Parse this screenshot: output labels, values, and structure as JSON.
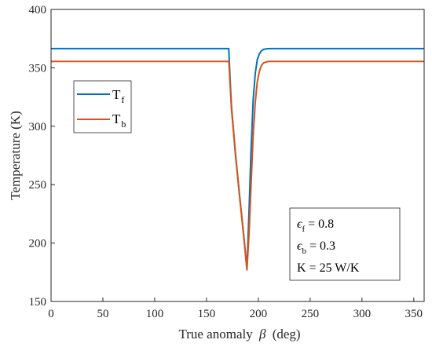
{
  "chart_data": {
    "type": "line",
    "title": "",
    "xlabel": "True anomaly",
    "xlabel_symbol": "β",
    "xlabel_unit": "(deg)",
    "ylabel": "Temperature (K)",
    "xlim": [
      0,
      360
    ],
    "ylim": [
      150,
      400
    ],
    "xticks": [
      0,
      50,
      100,
      150,
      200,
      250,
      300,
      350
    ],
    "yticks": [
      150,
      200,
      250,
      300,
      350,
      400
    ],
    "grid": false,
    "legend_position": "upper-left",
    "series": [
      {
        "name_main": "T",
        "name_sub": "f",
        "color": "#0072BD",
        "x": [
          0,
          171.5,
          172,
          174,
          178,
          182,
          186,
          189,
          191,
          193,
          195,
          197,
          199,
          201,
          203,
          205,
          208,
          212,
          360
        ],
        "y": [
          366.5,
          366.5,
          355,
          318,
          276,
          240,
          206,
          178,
          226,
          280,
          322,
          345,
          357,
          362,
          364.5,
          365.8,
          366.3,
          366.5,
          366.5
        ]
      },
      {
        "name_main": "T",
        "name_sub": "b",
        "color": "#D95319",
        "x": [
          0,
          171.5,
          172,
          174,
          178,
          182,
          186,
          189,
          191,
          193,
          195,
          197,
          199,
          201,
          203,
          205,
          208,
          212,
          360
        ],
        "y": [
          355.5,
          355.5,
          349,
          316,
          275,
          239,
          205,
          177,
          207,
          250,
          292,
          320,
          338,
          347,
          352,
          354.2,
          355.2,
          355.5,
          355.5
        ]
      }
    ],
    "annotation": {
      "line1_pre": "ϵ",
      "line1_sub": "f",
      "line1_post": " = 0.8",
      "line2_pre": "ϵ",
      "line2_sub": "b",
      "line2_post": " = 0.3",
      "line3": "K = 25 W/K"
    }
  }
}
